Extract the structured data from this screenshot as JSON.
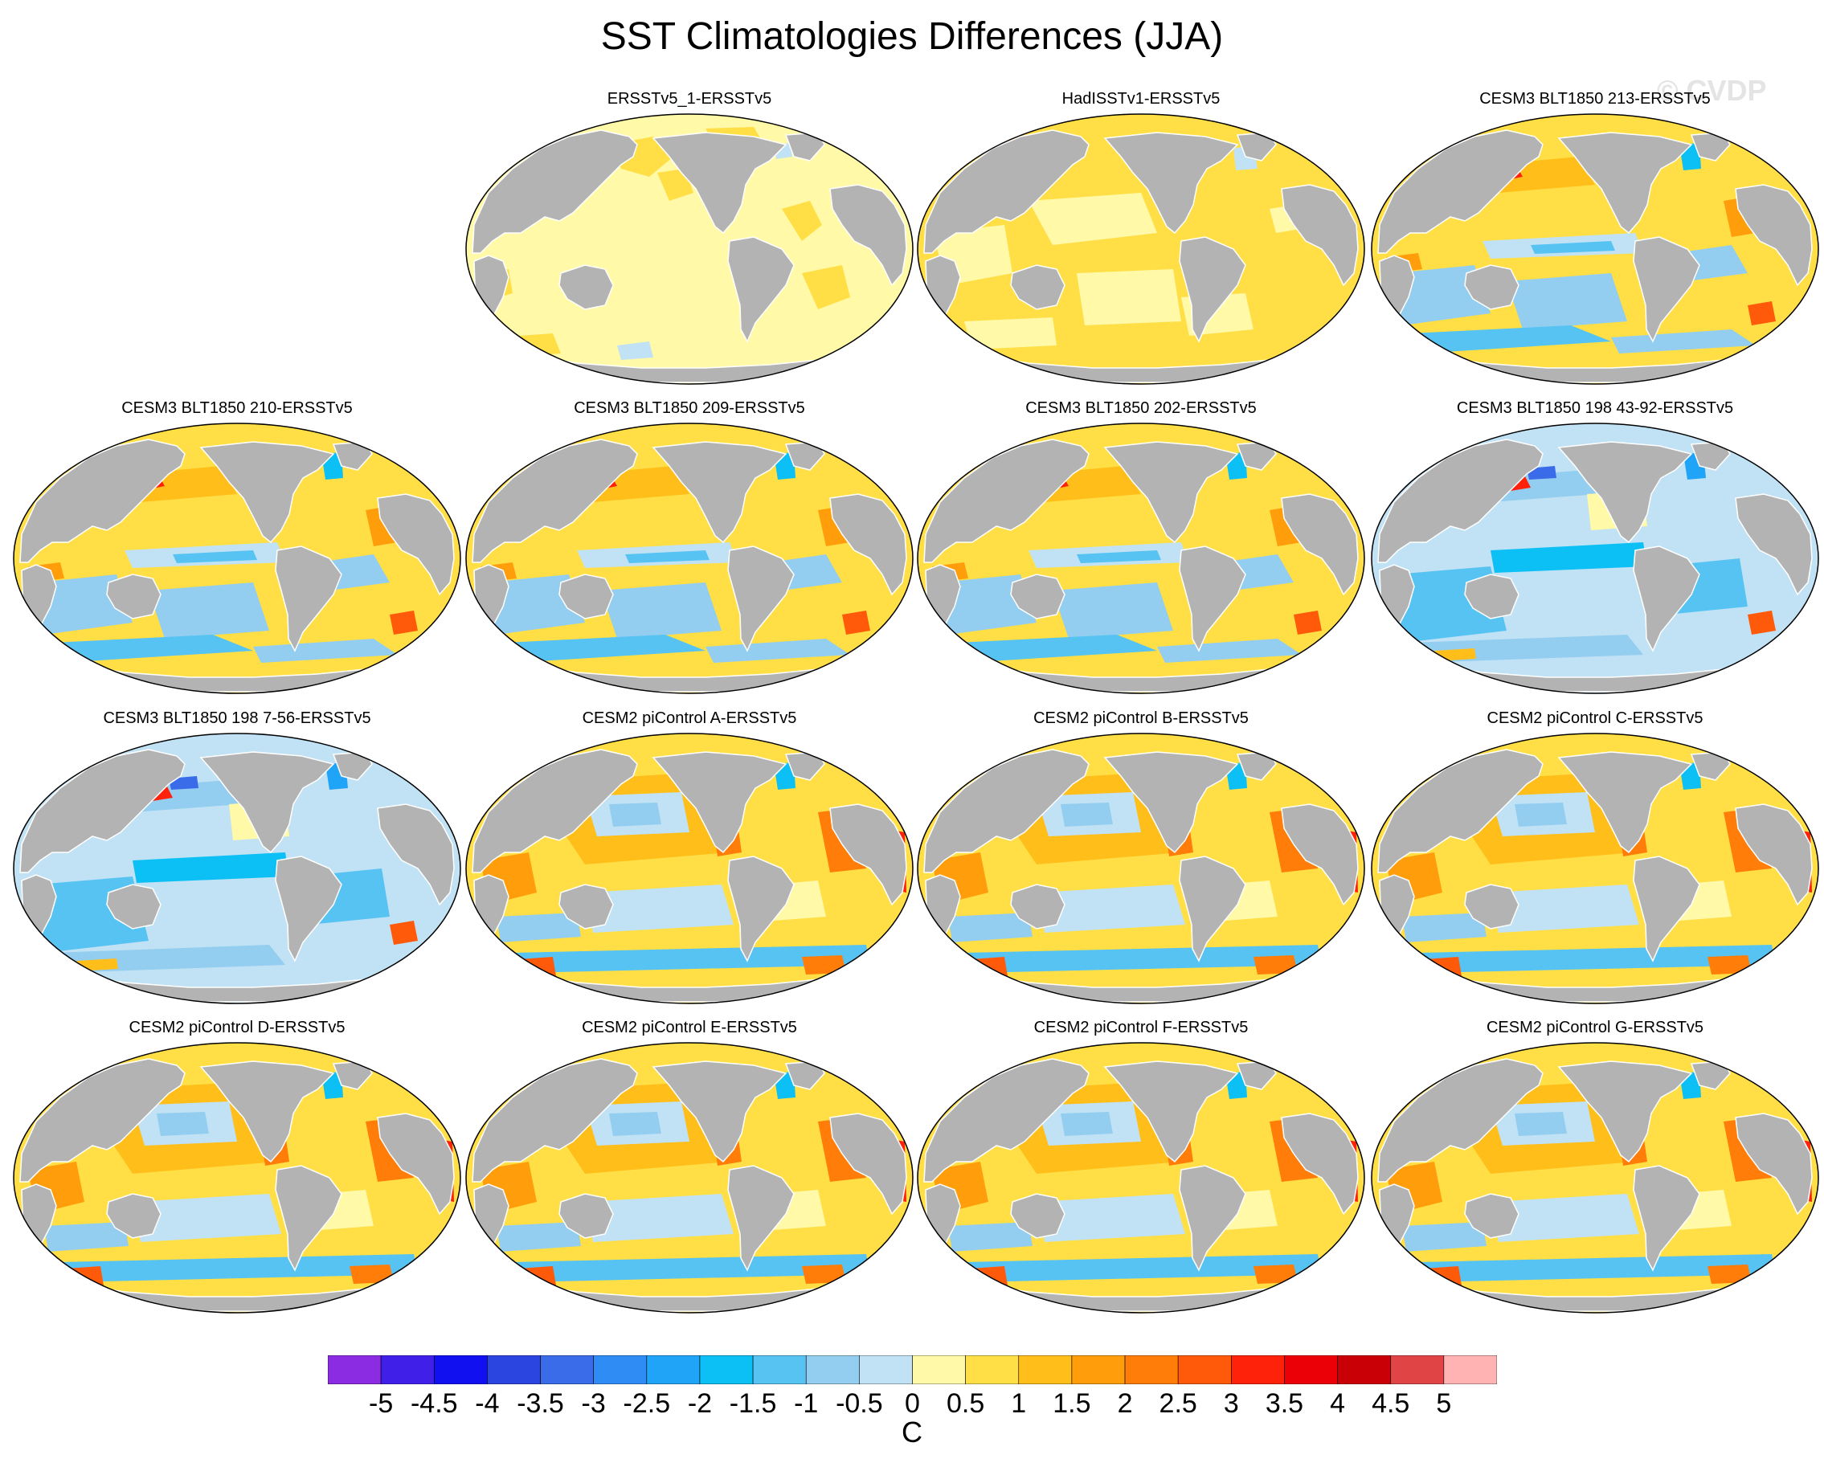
{
  "title": "SST Climatologies Differences (JJA)",
  "watermark": "© CVDP",
  "panels": [
    {
      "title": "ERSSTv5_1-ERSSTv5",
      "style": "ersst"
    },
    {
      "title": "HadISSTv1-ERSSTv5",
      "style": "hadisst"
    },
    {
      "title": "CESM3 BLT1850 213-ERSSTv5",
      "style": "blt"
    },
    {
      "title": "CESM3 BLT1850 210-ERSSTv5",
      "style": "blt"
    },
    {
      "title": "CESM3 BLT1850 209-ERSSTv5",
      "style": "blt"
    },
    {
      "title": "CESM3 BLT1850 202-ERSSTv5",
      "style": "blt"
    },
    {
      "title": "CESM3 BLT1850 198 43-92-ERSSTv5",
      "style": "blt198"
    },
    {
      "title": "CESM3 BLT1850 198 7-56-ERSSTv5",
      "style": "blt198"
    },
    {
      "title": "CESM2 piControl A-ERSSTv5",
      "style": "cesm2"
    },
    {
      "title": "CESM2 piControl B-ERSSTv5",
      "style": "cesm2"
    },
    {
      "title": "CESM2 piControl C-ERSSTv5",
      "style": "cesm2"
    },
    {
      "title": "CESM2 piControl D-ERSSTv5",
      "style": "cesm2"
    },
    {
      "title": "CESM2 piControl E-ERSSTv5",
      "style": "cesm2"
    },
    {
      "title": "CESM2 piControl F-ERSSTv5",
      "style": "cesm2"
    },
    {
      "title": "CESM2 piControl G-ERSSTv5",
      "style": "cesm2"
    }
  ],
  "colorbar": {
    "units": "C",
    "labels": [
      "-5",
      "-4.5",
      "-4",
      "-3.5",
      "-3",
      "-2.5",
      "-2",
      "-1.5",
      "-1",
      "-0.5",
      "0",
      "0.5",
      "1",
      "1.5",
      "2",
      "2.5",
      "3",
      "3.5",
      "4",
      "4.5",
      "5"
    ],
    "colors": [
      "#8b2be2",
      "#4020e8",
      "#1010f0",
      "#2b45e0",
      "#3a6be8",
      "#2f8cf5",
      "#1fa4f7",
      "#0cc0f5",
      "#57c3f3",
      "#93cdf0",
      "#c0e2f4",
      "#fff9a8",
      "#ffdf45",
      "#ffbe1a",
      "#ff9e0a",
      "#ff7d08",
      "#ff5a0a",
      "#ff220a",
      "#ec0008",
      "#c90006",
      "#e04444",
      "#ffb3b3"
    ]
  }
}
